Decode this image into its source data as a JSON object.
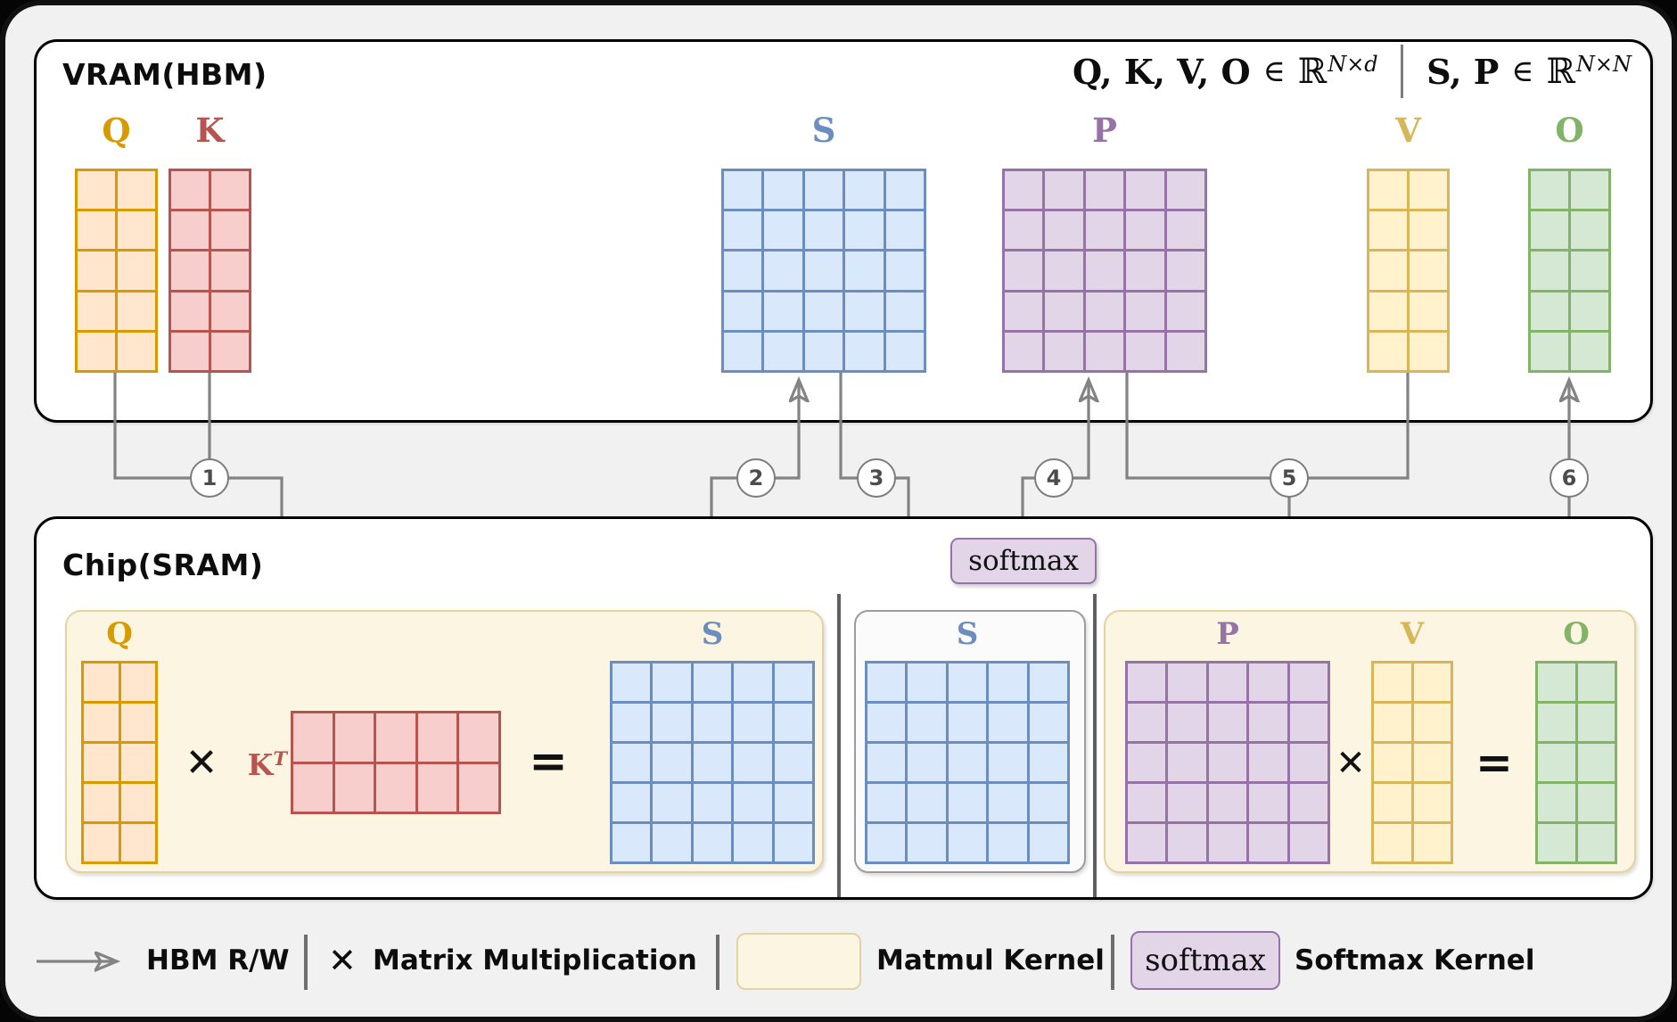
{
  "colors": {
    "gold_stroke": "#D79B00",
    "gold_fill": "#FFE6CC",
    "red_stroke": "#B85450",
    "red_fill": "#F8CECC",
    "blue_stroke": "#6C8EBF",
    "blue_fill": "#DAE8FC",
    "purple_stroke": "#9673A6",
    "purple_fill": "#E1D5E7",
    "yellow_stroke": "#D6B656",
    "yellow_fill": "#FFF2CC",
    "green_stroke": "#82B366",
    "green_fill": "#D5E8D4",
    "cream_fill": "#FCF5E1",
    "cream_stroke": "#E3D3A1",
    "graybox_fill": "#FBFBFB",
    "graybox_stroke": "#9C9C9C",
    "wire_gray": "#838383",
    "background": "#F1F1F1",
    "panel_border": "#000000"
  },
  "vram": {
    "title": "VRAM(HBM)",
    "formula_left": {
      "vars": "Q, K, V, O",
      "in": "∈",
      "set": "ℝ",
      "sup": "N×d"
    },
    "formula_right": {
      "vars": "S, P",
      "in": "∈",
      "set": "ℝ",
      "sup": "N×N"
    },
    "matrices": [
      {
        "id": "Q",
        "label": "Q",
        "rows": 5,
        "cols": 2,
        "palette": "gold"
      },
      {
        "id": "K",
        "label": "K",
        "rows": 5,
        "cols": 2,
        "palette": "red"
      },
      {
        "id": "S",
        "label": "S",
        "rows": 5,
        "cols": 5,
        "palette": "blue"
      },
      {
        "id": "P",
        "label": "P",
        "rows": 5,
        "cols": 5,
        "palette": "purple"
      },
      {
        "id": "V",
        "label": "V",
        "rows": 5,
        "cols": 2,
        "palette": "yellow"
      },
      {
        "id": "O",
        "label": "O",
        "rows": 5,
        "cols": 2,
        "palette": "green"
      }
    ]
  },
  "chip": {
    "title": "Chip(SRAM)",
    "matmul1": {
      "label_q": "Q",
      "q": {
        "rows": 5,
        "cols": 2,
        "palette": "gold"
      },
      "times": "✕",
      "label_kt_base": "K",
      "label_kt_sup": "T",
      "kt": {
        "rows": 2,
        "cols": 5,
        "palette": "red"
      },
      "equals": "=",
      "label_s": "S",
      "s": {
        "rows": 5,
        "cols": 5,
        "palette": "blue"
      }
    },
    "softmax_block": {
      "label_s": "S",
      "s": {
        "rows": 5,
        "cols": 5,
        "palette": "blue"
      },
      "softmax_label": "softmax"
    },
    "matmul2": {
      "label_p": "P",
      "p": {
        "rows": 5,
        "cols": 5,
        "palette": "purple"
      },
      "times": "✕",
      "label_v": "V",
      "v": {
        "rows": 5,
        "cols": 2,
        "palette": "yellow"
      },
      "equals": "=",
      "label_o": "O",
      "o": {
        "rows": 5,
        "cols": 2,
        "palette": "green"
      }
    }
  },
  "steps": [
    "1",
    "2",
    "3",
    "4",
    "5",
    "6"
  ],
  "legend": {
    "hbm_label": "HBM R/W",
    "times_symbol": "✕",
    "times_label": "Matrix Multiplication",
    "matmul_kernel_label": "Matmul Kernel",
    "softmax_chip_label": "softmax",
    "softmax_kernel_label": "Softmax Kernel"
  }
}
